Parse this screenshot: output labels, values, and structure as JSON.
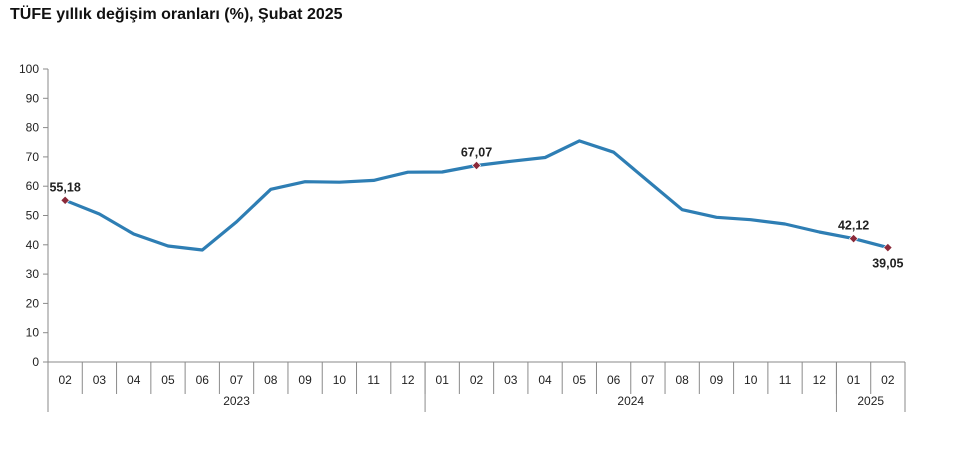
{
  "title": "TÜFE yıllık değişim oranları (%), Şubat 2025",
  "chart_data": {
    "type": "line",
    "title": "TÜFE yıllık değişim oranları (%), Şubat 2025",
    "xlabel": "",
    "ylabel": "",
    "ylim": [
      0,
      100
    ],
    "yticks": [
      0,
      10,
      20,
      30,
      40,
      50,
      60,
      70,
      80,
      90,
      100
    ],
    "grid": false,
    "legend": "none",
    "categories": [
      "02",
      "03",
      "04",
      "05",
      "06",
      "07",
      "08",
      "09",
      "10",
      "11",
      "12",
      "01",
      "02",
      "03",
      "04",
      "05",
      "06",
      "07",
      "08",
      "09",
      "10",
      "11",
      "12",
      "01",
      "02"
    ],
    "years": [
      {
        "label": "2023",
        "count": 11
      },
      {
        "label": "2024",
        "count": 12
      },
      {
        "label": "2025",
        "count": 2
      }
    ],
    "series": [
      {
        "values": [
          55.18,
          50.51,
          43.68,
          39.59,
          38.21,
          47.83,
          58.94,
          61.53,
          61.36,
          61.98,
          64.77,
          64.86,
          67.07,
          68.5,
          69.8,
          75.45,
          71.6,
          61.78,
          51.97,
          49.38,
          48.58,
          47.09,
          44.38,
          42.12,
          39.05
        ],
        "color": "#2e7eb4"
      }
    ],
    "data_labels": [
      {
        "index": 0,
        "text": "55,18",
        "position": "above"
      },
      {
        "index": 12,
        "text": "67,07",
        "position": "above"
      },
      {
        "index": 23,
        "text": "42,12",
        "position": "above"
      },
      {
        "index": 24,
        "text": "39,05",
        "position": "below"
      }
    ],
    "marker_color": "#8b2a3a",
    "axis_color": "#8a8a8a"
  }
}
